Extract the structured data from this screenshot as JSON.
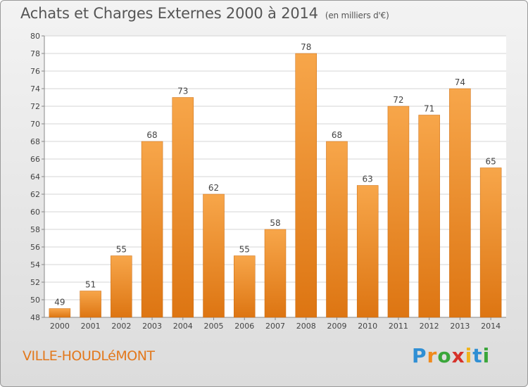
{
  "chart_data": {
    "type": "bar",
    "title": "Achats et Charges Externes 2000 à 2014",
    "unit_note": "(en milliers d'€)",
    "categories": [
      "2000",
      "2001",
      "2002",
      "2003",
      "2004",
      "2005",
      "2006",
      "2007",
      "2008",
      "2009",
      "2010",
      "2011",
      "2012",
      "2013",
      "2014"
    ],
    "values": [
      49,
      51,
      55,
      68,
      73,
      62,
      55,
      58,
      78,
      68,
      63,
      72,
      71,
      74,
      65
    ],
    "ylim": [
      48,
      80
    ],
    "yticks": [
      48,
      50,
      52,
      54,
      56,
      58,
      60,
      62,
      64,
      66,
      68,
      70,
      72,
      74,
      76,
      78,
      80
    ],
    "grid": true,
    "bar_color": "#f0922e"
  },
  "footer": {
    "place": "VILLE-HOUDLéMONT",
    "brand": [
      "P",
      "r",
      "o",
      "x",
      "i",
      "t",
      "i"
    ],
    "brand_colors": [
      "#2f8fd4",
      "#f08a1c",
      "#3aa63a",
      "#d6322a",
      "#f0b31c",
      "#2f8fd4",
      "#3aa63a"
    ]
  }
}
